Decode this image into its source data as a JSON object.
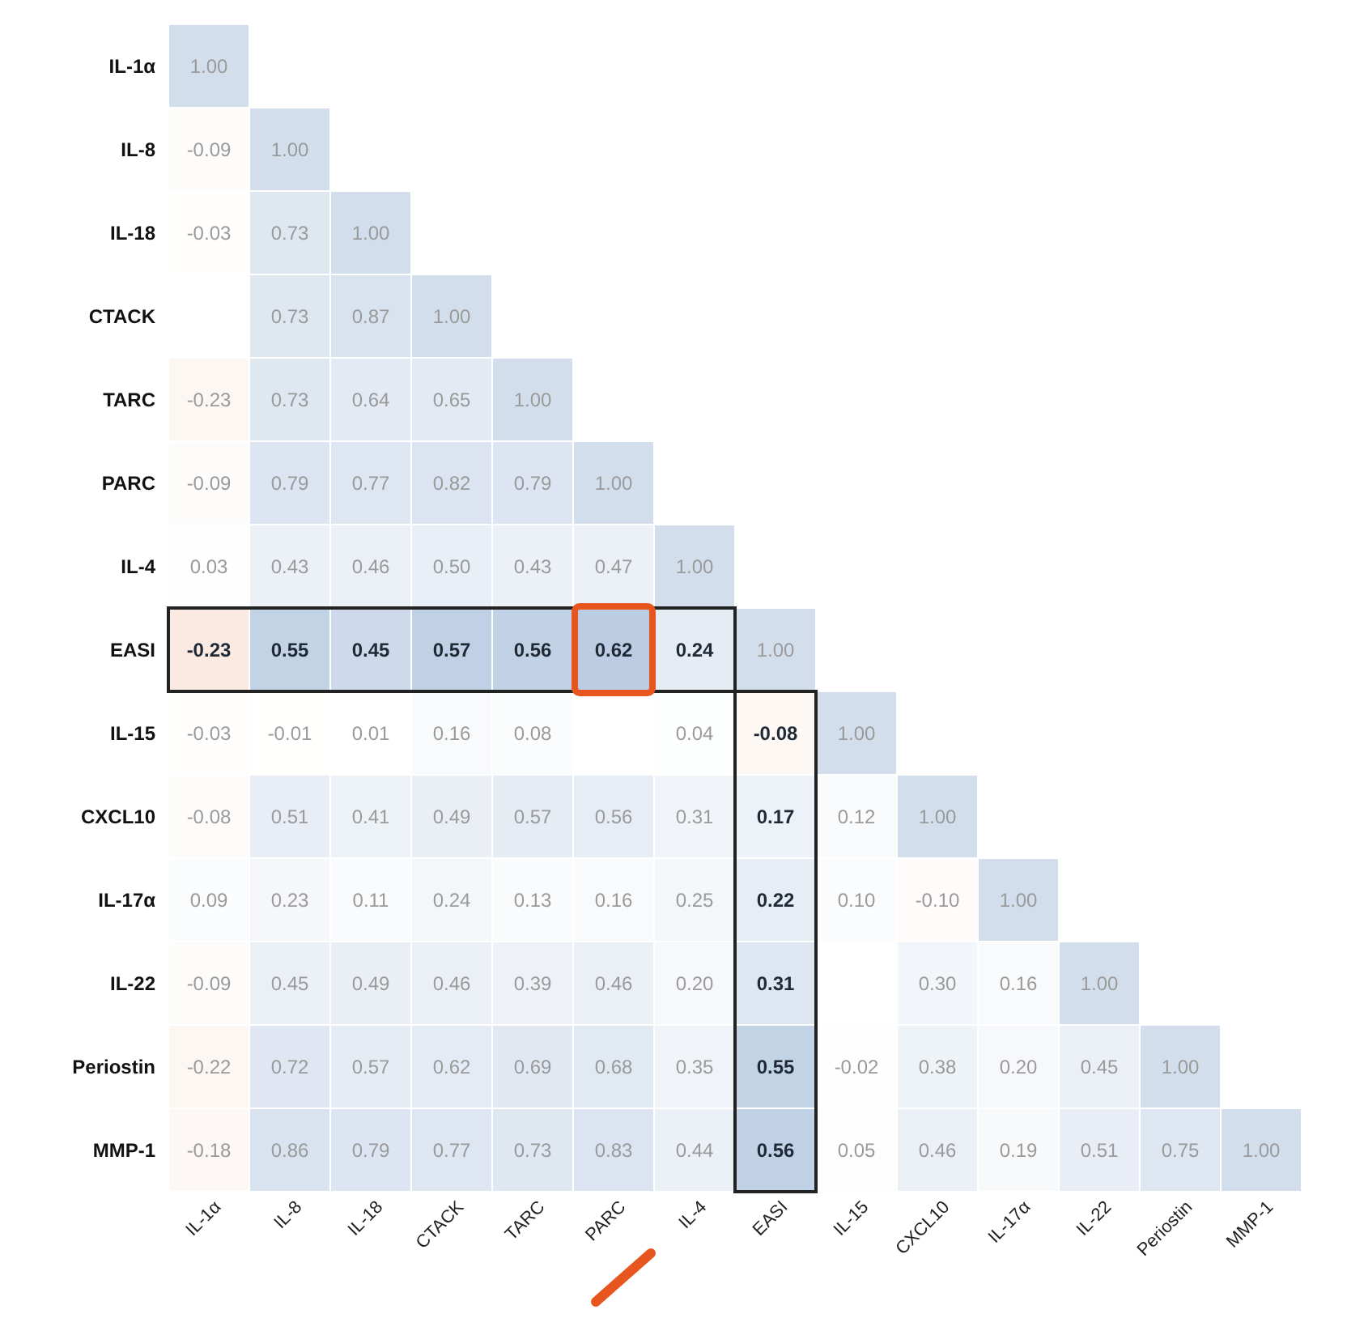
{
  "chart_data": {
    "type": "heatmap",
    "categories": [
      "IL-1α",
      "IL-8",
      "IL-18",
      "CTACK",
      "TARC",
      "PARC",
      "IL-4",
      "EASI",
      "IL-15",
      "CXCL10",
      "IL-17α",
      "IL-22",
      "Periostin",
      "MMP-1"
    ],
    "y_categories": [
      "IL-1α",
      "IL-8",
      "IL-18",
      "CTACK",
      "TARC",
      "PARC",
      "IL-4",
      "EASI",
      "IL-15",
      "CXCL10",
      "IL-17α",
      "IL-22",
      "Periostin",
      "MMP-1"
    ],
    "cells": [
      [
        1.0,
        null,
        null,
        null,
        null,
        null,
        null,
        null,
        null,
        null,
        null,
        null,
        null,
        null
      ],
      [
        -0.09,
        1.0,
        null,
        null,
        null,
        null,
        null,
        null,
        null,
        null,
        null,
        null,
        null,
        null
      ],
      [
        -0.03,
        0.73,
        1.0,
        null,
        null,
        null,
        null,
        null,
        null,
        null,
        null,
        null,
        null,
        null
      ],
      [
        null,
        0.73,
        0.87,
        1.0,
        null,
        null,
        null,
        null,
        null,
        null,
        null,
        null,
        null,
        null
      ],
      [
        -0.23,
        0.73,
        0.64,
        0.65,
        1.0,
        null,
        null,
        null,
        null,
        null,
        null,
        null,
        null,
        null
      ],
      [
        -0.09,
        0.79,
        0.77,
        0.82,
        0.79,
        1.0,
        null,
        null,
        null,
        null,
        null,
        null,
        null,
        null
      ],
      [
        0.03,
        0.43,
        0.46,
        0.5,
        0.43,
        0.47,
        1.0,
        null,
        null,
        null,
        null,
        null,
        null,
        null
      ],
      [
        -0.23,
        0.55,
        0.45,
        0.57,
        0.56,
        0.62,
        0.24,
        1.0,
        null,
        null,
        null,
        null,
        null,
        null
      ],
      [
        -0.03,
        -0.01,
        0.01,
        0.16,
        0.08,
        null,
        0.04,
        -0.08,
        1.0,
        null,
        null,
        null,
        null,
        null
      ],
      [
        -0.08,
        0.51,
        0.41,
        0.49,
        0.57,
        0.56,
        0.31,
        0.17,
        0.12,
        1.0,
        null,
        null,
        null,
        null
      ],
      [
        0.09,
        0.23,
        0.11,
        0.24,
        0.13,
        0.16,
        0.25,
        0.22,
        0.1,
        -0.1,
        1.0,
        null,
        null,
        null
      ],
      [
        -0.09,
        0.45,
        0.49,
        0.46,
        0.39,
        0.46,
        0.2,
        0.31,
        null,
        0.3,
        0.16,
        1.0,
        null,
        null
      ],
      [
        -0.22,
        0.72,
        0.57,
        0.62,
        0.69,
        0.68,
        0.35,
        0.55,
        -0.02,
        0.38,
        0.2,
        0.45,
        1.0,
        null
      ],
      [
        -0.18,
        0.86,
        0.79,
        0.77,
        0.73,
        0.83,
        0.44,
        0.56,
        0.05,
        0.46,
        0.19,
        0.51,
        0.75,
        1.0
      ]
    ],
    "cell_labels": [
      [
        "1.00",
        null,
        null,
        null,
        null,
        null,
        null,
        null,
        null,
        null,
        null,
        null,
        null,
        null
      ],
      [
        "-0.09",
        "1.00",
        null,
        null,
        null,
        null,
        null,
        null,
        null,
        null,
        null,
        null,
        null,
        null
      ],
      [
        "-0.03",
        "0.73",
        "1.00",
        null,
        null,
        null,
        null,
        null,
        null,
        null,
        null,
        null,
        null,
        null
      ],
      [
        null,
        "0.73",
        "0.87",
        "1.00",
        null,
        null,
        null,
        null,
        null,
        null,
        null,
        null,
        null,
        null
      ],
      [
        "-0.23",
        "0.73",
        "0.64",
        "0.65",
        "1.00",
        null,
        null,
        null,
        null,
        null,
        null,
        null,
        null,
        null
      ],
      [
        "-0.09",
        "0.79",
        "0.77",
        "0.82",
        "0.79",
        "1.00",
        null,
        null,
        null,
        null,
        null,
        null,
        null,
        null
      ],
      [
        "0.03",
        "0.43",
        "0.46",
        "0.50",
        "0.43",
        "0.47",
        "1.00",
        null,
        null,
        null,
        null,
        null,
        null,
        null
      ],
      [
        "-0.23",
        "0.55",
        "0.45",
        "0.57",
        "0.56",
        "0.62",
        "0.24",
        "1.00",
        null,
        null,
        null,
        null,
        null,
        null
      ],
      [
        "-0.03",
        "-0.01",
        "0.01",
        "0.16",
        "0.08",
        null,
        "0.04",
        "-0.08",
        "1.00",
        null,
        null,
        null,
        null,
        null
      ],
      [
        "-0.08",
        "0.51",
        "0.41",
        "0.49",
        "0.57",
        "0.56",
        "0.31",
        "0.17",
        "0.12",
        "1.00",
        null,
        null,
        null,
        null
      ],
      [
        "0.09",
        "0.23",
        "0.11",
        "0.24",
        "0.13",
        "0.16",
        "0.25",
        "0.22",
        "0.10",
        "-0.10",
        "1.00",
        null,
        null,
        null
      ],
      [
        "-0.09",
        "0.45",
        "0.49",
        "0.46",
        "0.39",
        "0.46",
        "0.20",
        "0.31",
        null,
        "0.30",
        "0.16",
        "1.00",
        null,
        null
      ],
      [
        "-0.22",
        "0.72",
        "0.57",
        "0.62",
        "0.69",
        "0.68",
        "0.35",
        "0.55",
        "-0.02",
        "0.38",
        "0.20",
        "0.45",
        "1.00",
        null
      ],
      [
        "-0.18",
        "0.86",
        "0.79",
        "0.77",
        "0.73",
        "0.83",
        "0.44",
        "0.56",
        "0.05",
        "0.46",
        "0.19",
        "0.51",
        "0.75",
        "1.00"
      ]
    ]
  }
}
